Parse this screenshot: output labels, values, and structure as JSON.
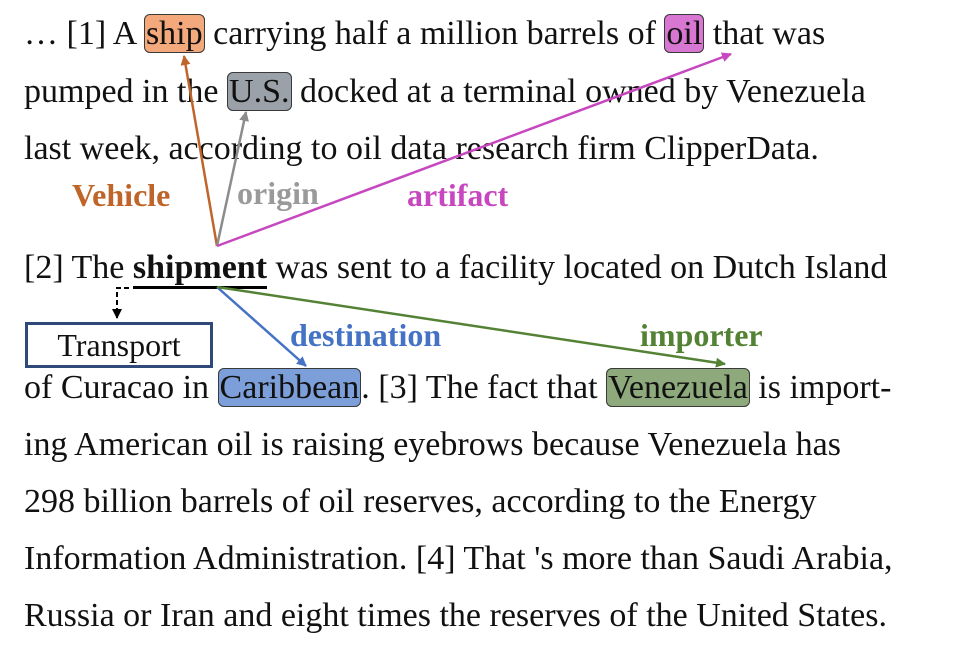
{
  "lines": {
    "l1": {
      "p1": "… [1] A ",
      "ship": "ship",
      "p2": " carrying half a million barrels of ",
      "oil": "oil",
      "p3": " that was"
    },
    "l2": {
      "p1": "pumped in the ",
      "us": "U.S.",
      "p2": " docked at a terminal owned by Venezuela"
    },
    "l3": "last week, according to oil data research firm ClipperData.",
    "l4": {
      "p1": "[2] The ",
      "shipment": "shipment",
      "p2": " was sent to a facility located on Dutch Island"
    },
    "l5": {
      "p1": "of Curacao in ",
      "caribbean": "Caribbean",
      "p2": ". [3] The fact that ",
      "venezuela": "Venezuela",
      "p3": " is import-"
    },
    "l6": "ing American oil is raising eyebrows because Venezuela has",
    "l7": "298 billion barrels of oil reserves, according to the Energy",
    "l8": "Information Administration. [4] That 's more than Saudi Arabia,",
    "l9": "Russia or Iran and eight times the reserves of the United States."
  },
  "roles": {
    "vehicle": "Vehicle",
    "origin": "origin",
    "artifact": "artifact",
    "destination": "destination",
    "importer": "importer"
  },
  "event_type": "Transport",
  "colors": {
    "vehicle": "#c0652a",
    "vehicle_fill": "#f4a97c",
    "origin": "#8c8c8c",
    "origin_fill": "#9aa1a8",
    "artifact": "#c747c0",
    "artifact_fill": "#d877d1",
    "destination": "#4472c4",
    "destination_fill": "#7d9fd9",
    "importer": "#548235",
    "importer_fill": "#8eaa7c"
  }
}
